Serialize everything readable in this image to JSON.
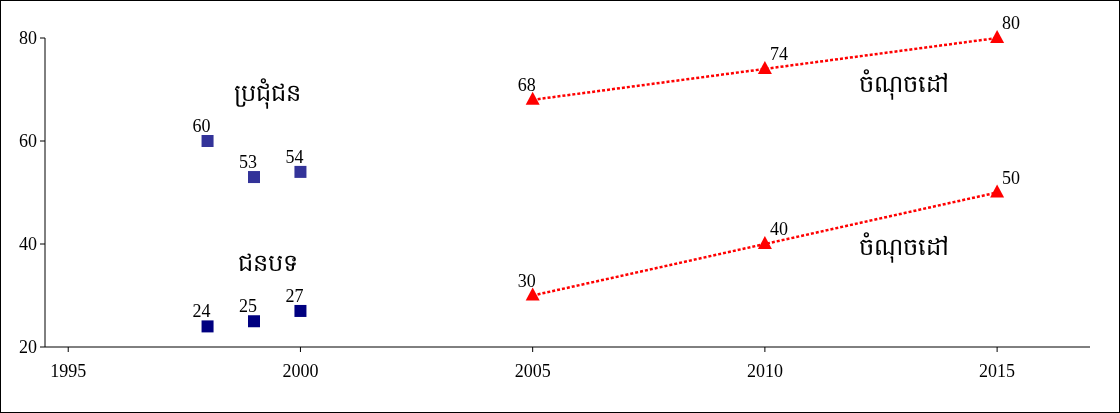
{
  "chart_data": {
    "type": "scatter",
    "xlim": [
      1994.5,
      2017
    ],
    "xticks": [
      1995,
      2000,
      2005,
      2010,
      2015
    ],
    "ylim": [
      20,
      80
    ],
    "yticks": [
      20,
      40,
      60,
      80
    ],
    "grid": false,
    "legend": false,
    "data_labels": true,
    "series": [
      {
        "name": "ប្រជុំជន",
        "marker": "square",
        "color": "#333399",
        "x": [
          1998,
          1999,
          2000
        ],
        "values": [
          60,
          53,
          54
        ]
      },
      {
        "name": "ជនបទ",
        "marker": "square",
        "color": "#000080",
        "x": [
          1998,
          1999,
          2000
        ],
        "values": [
          24,
          25,
          27
        ]
      },
      {
        "name": "ចំណុចដៅ",
        "type": "line",
        "marker": "triangle",
        "line_style": "dotted",
        "color": "#ff0000",
        "x": [
          2005,
          2010,
          2015
        ],
        "values": [
          68,
          74,
          80
        ]
      },
      {
        "name": "ចំណុចដៅ",
        "type": "line",
        "marker": "triangle",
        "line_style": "dotted",
        "color": "#ff0000",
        "x": [
          2005,
          2010,
          2015
        ],
        "values": [
          30,
          40,
          50
        ]
      }
    ]
  }
}
